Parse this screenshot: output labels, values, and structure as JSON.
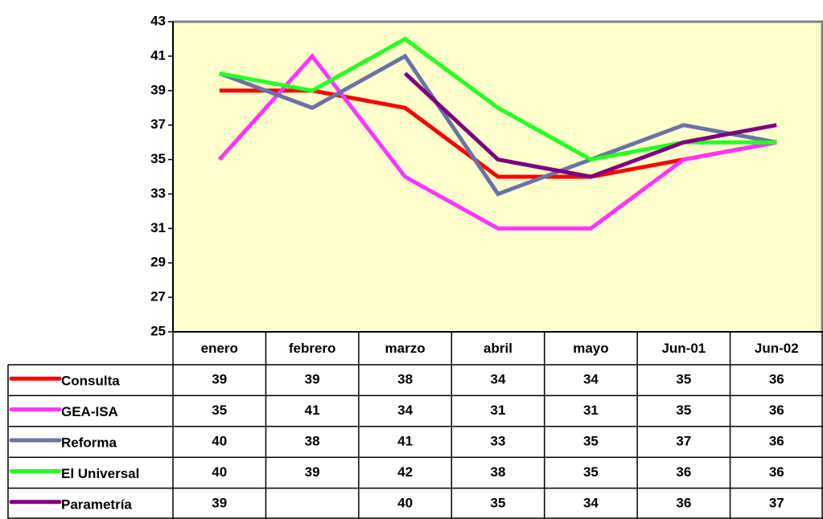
{
  "chart_data": {
    "type": "line",
    "categories": [
      "enero",
      "febrero",
      "marzo",
      "abril",
      "mayo",
      "Jun-01",
      "Jun-02"
    ],
    "series": [
      {
        "name": "Consulta",
        "color": "#ff0000",
        "values": [
          39,
          39,
          38,
          34,
          34,
          35,
          36
        ]
      },
      {
        "name": "GEA-ISA",
        "color": "#ff33ff",
        "values": [
          35,
          41,
          34,
          31,
          31,
          35,
          36
        ]
      },
      {
        "name": "Reforma",
        "color": "#6b72a6",
        "values": [
          40,
          38,
          41,
          33,
          35,
          37,
          36
        ]
      },
      {
        "name": "El Universal",
        "color": "#22ff22",
        "values": [
          40,
          39,
          42,
          38,
          35,
          36,
          36
        ]
      },
      {
        "name": "Parametría",
        "color": "#800080",
        "values": [
          39,
          null,
          40,
          35,
          34,
          36,
          37
        ]
      }
    ],
    "ylim": [
      25,
      43
    ],
    "yticks": [
      25,
      27,
      29,
      31,
      33,
      35,
      37,
      39,
      41,
      43
    ],
    "plot_background": "#ffffcc",
    "data_table": true
  }
}
